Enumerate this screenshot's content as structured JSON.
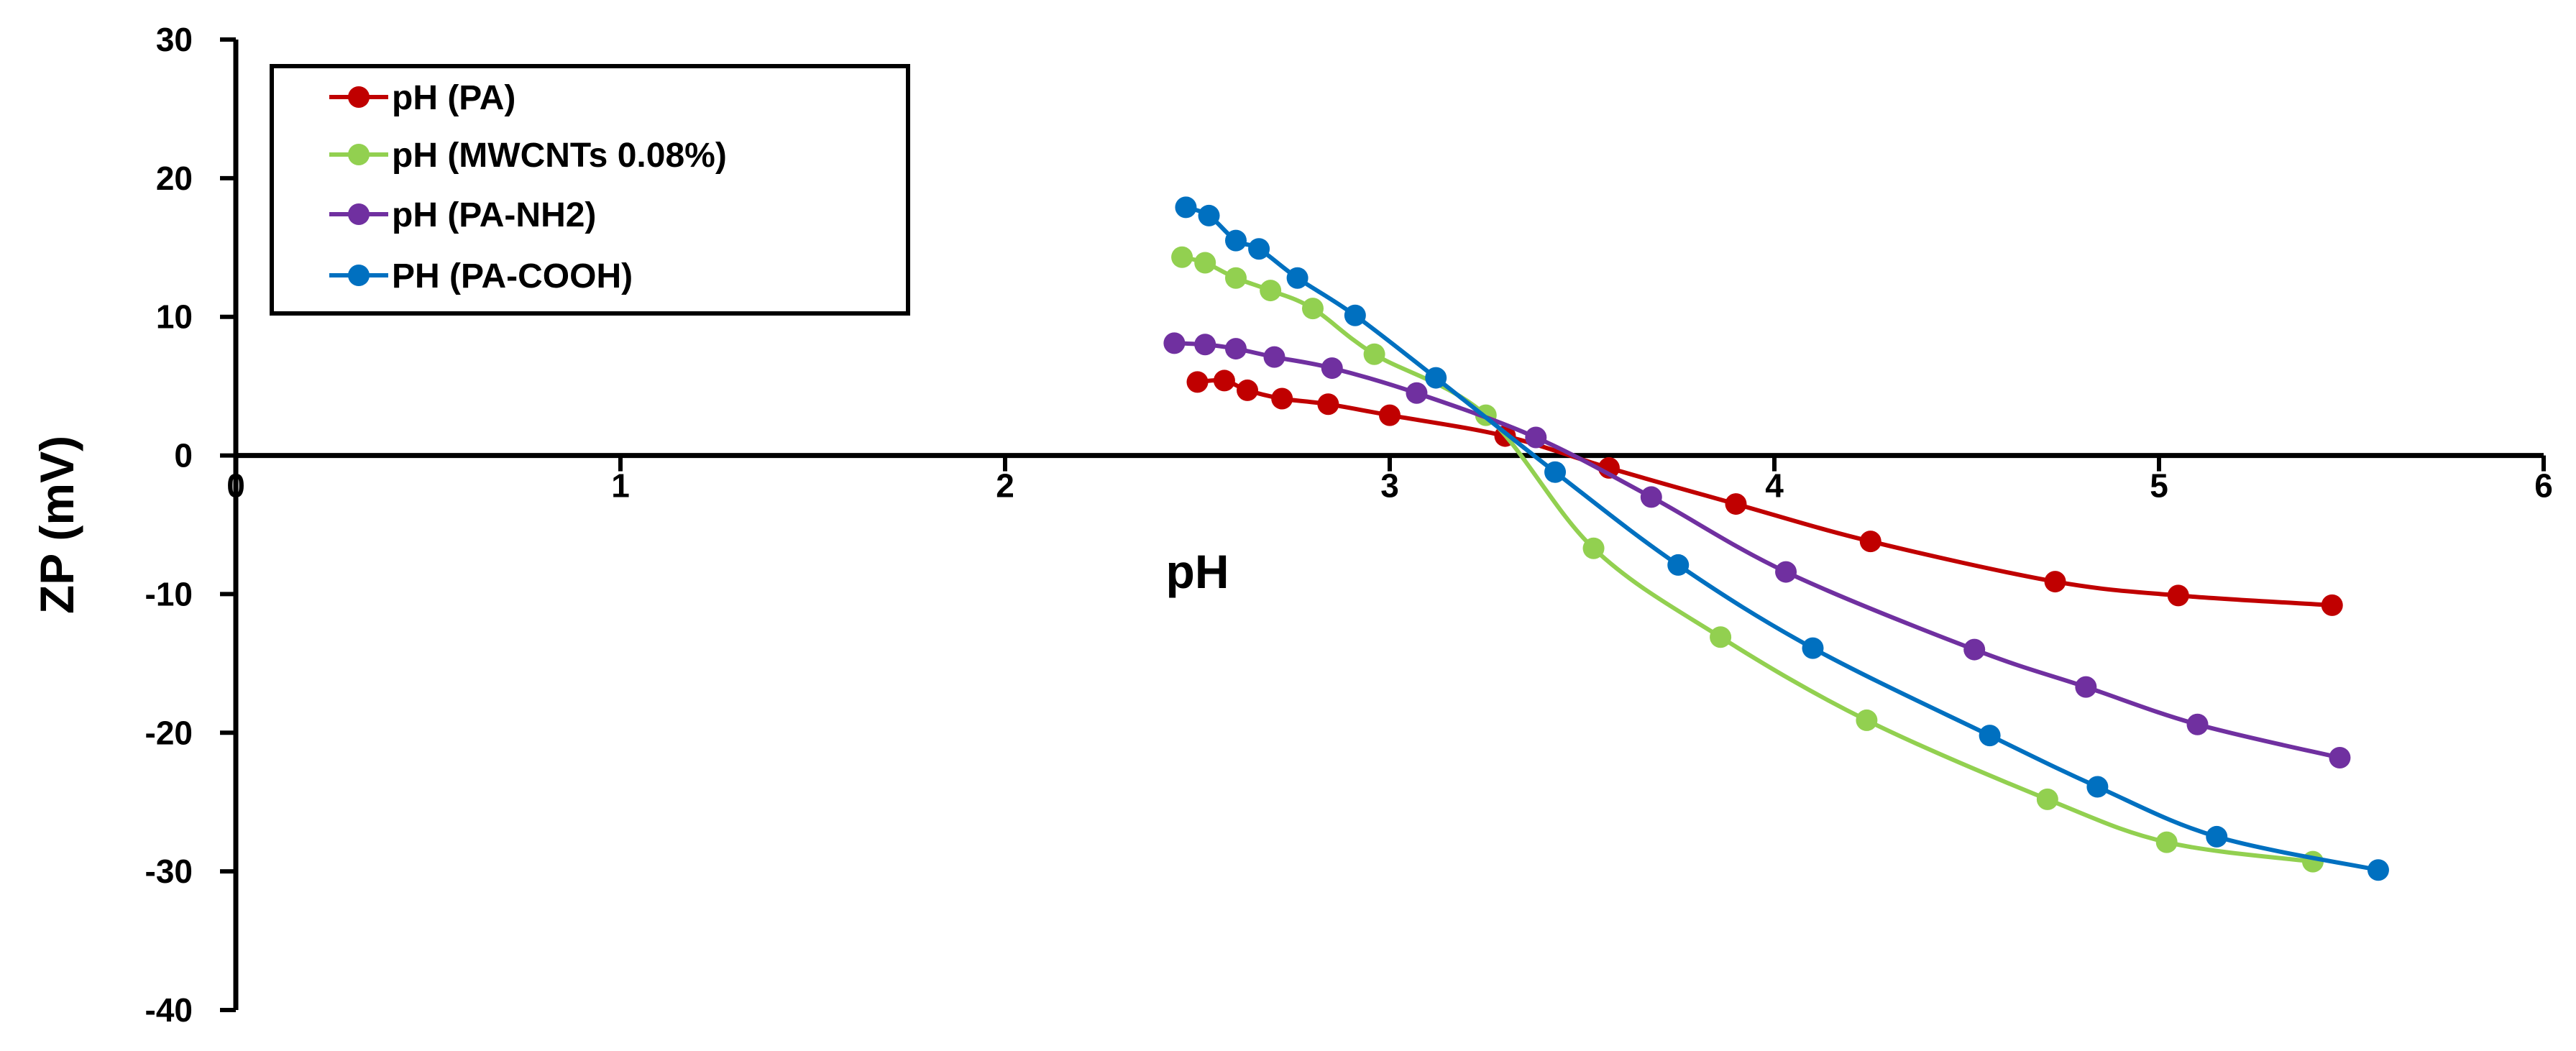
{
  "chart_data": {
    "type": "line",
    "title": "",
    "xlabel": "pH",
    "ylabel": "ZP (mV)",
    "xlim": [
      0,
      6
    ],
    "ylim": [
      -40,
      30
    ],
    "x_ticks": [
      "0",
      "1",
      "2",
      "3",
      "4",
      "5",
      "6"
    ],
    "y_ticks": [
      "30",
      "20",
      "10",
      "0",
      "-10",
      "-20",
      "-30",
      "-40"
    ],
    "grid": false,
    "legend_position": "top-left",
    "series": [
      {
        "name": "pH (PA)",
        "color": "#c00000",
        "x": [
          2.5,
          2.57,
          2.63,
          2.72,
          2.84,
          3.0,
          3.3,
          3.57,
          3.9,
          4.25,
          4.73,
          5.05,
          5.45
        ],
        "y": [
          5.3,
          5.4,
          4.7,
          4.1,
          3.7,
          2.9,
          1.4,
          -0.9,
          -3.5,
          -6.2,
          -9.1,
          -10.1,
          -10.8
        ]
      },
      {
        "name": "pH (MWCNTs 0.08%)",
        "color": "#92d050",
        "x": [
          2.46,
          2.52,
          2.6,
          2.69,
          2.8,
          2.96,
          3.25,
          3.53,
          3.86,
          4.24,
          4.71,
          5.02,
          5.4
        ],
        "y": [
          14.3,
          13.9,
          12.8,
          11.9,
          10.6,
          7.3,
          2.9,
          -6.7,
          -13.1,
          -19.1,
          -24.8,
          -27.9,
          -29.3
        ]
      },
      {
        "name": "pH (PA-NH2)",
        "color": "#7030a0",
        "x": [
          2.44,
          2.52,
          2.6,
          2.7,
          2.85,
          3.07,
          3.38,
          3.68,
          4.03,
          4.52,
          4.81,
          5.1,
          5.47
        ],
        "y": [
          8.1,
          8.0,
          7.7,
          7.1,
          6.3,
          4.5,
          1.3,
          -3.0,
          -8.4,
          -14.0,
          -16.7,
          -19.4,
          -21.8
        ]
      },
      {
        "name": "PH (PA-COOH)",
        "color": "#0070c0",
        "x": [
          2.47,
          2.53,
          2.6,
          2.66,
          2.76,
          2.91,
          3.12,
          3.43,
          3.75,
          4.1,
          4.56,
          4.84,
          5.15,
          5.57
        ],
        "y": [
          17.9,
          17.3,
          15.5,
          14.9,
          12.8,
          10.1,
          5.6,
          -1.2,
          -7.9,
          -13.9,
          -20.2,
          -23.9,
          -27.5,
          -29.9
        ]
      }
    ]
  }
}
